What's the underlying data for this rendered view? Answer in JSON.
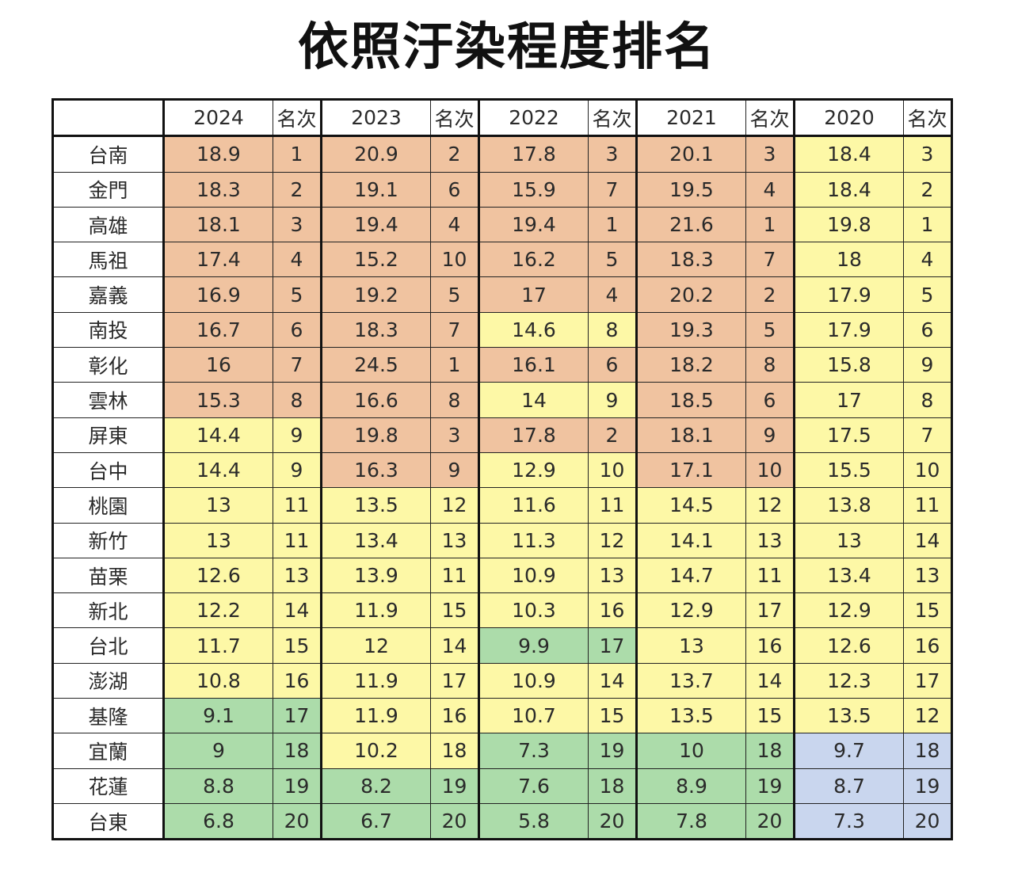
{
  "title": "依照汙染程度排名",
  "colors": {
    "orange": "#f0c3a0",
    "yellow": "#fdf8a6",
    "green": "#acdcaa",
    "blue": "#c9d6ee"
  },
  "header": {
    "blank": "",
    "y2024": "2024",
    "y2023": "2023",
    "y2022": "2022",
    "y2021": "2021",
    "y2020": "2020",
    "rank": "名次"
  },
  "rows": [
    {
      "name": "台南",
      "v": [
        "18.9",
        "1",
        "20.9",
        "2",
        "17.8",
        "3",
        "20.1",
        "3",
        "18.4",
        "3"
      ],
      "c": [
        "orange",
        "orange",
        "orange",
        "orange",
        "orange",
        "orange",
        "orange",
        "orange",
        "yellow",
        "yellow"
      ]
    },
    {
      "name": "金門",
      "v": [
        "18.3",
        "2",
        "19.1",
        "6",
        "15.9",
        "7",
        "19.5",
        "4",
        "18.4",
        "2"
      ],
      "c": [
        "orange",
        "orange",
        "orange",
        "orange",
        "orange",
        "orange",
        "orange",
        "orange",
        "yellow",
        "yellow"
      ]
    },
    {
      "name": "高雄",
      "v": [
        "18.1",
        "3",
        "19.4",
        "4",
        "19.4",
        "1",
        "21.6",
        "1",
        "19.8",
        "1"
      ],
      "c": [
        "orange",
        "orange",
        "orange",
        "orange",
        "orange",
        "orange",
        "orange",
        "orange",
        "yellow",
        "yellow"
      ]
    },
    {
      "name": "馬祖",
      "v": [
        "17.4",
        "4",
        "15.2",
        "10",
        "16.2",
        "5",
        "18.3",
        "7",
        "18",
        "4"
      ],
      "c": [
        "orange",
        "orange",
        "orange",
        "orange",
        "orange",
        "orange",
        "orange",
        "orange",
        "yellow",
        "yellow"
      ]
    },
    {
      "name": "嘉義",
      "v": [
        "16.9",
        "5",
        "19.2",
        "5",
        "17",
        "4",
        "20.2",
        "2",
        "17.9",
        "5"
      ],
      "c": [
        "orange",
        "orange",
        "orange",
        "orange",
        "orange",
        "orange",
        "orange",
        "orange",
        "yellow",
        "yellow"
      ]
    },
    {
      "name": "南投",
      "v": [
        "16.7",
        "6",
        "18.3",
        "7",
        "14.6",
        "8",
        "19.3",
        "5",
        "17.9",
        "6"
      ],
      "c": [
        "orange",
        "orange",
        "orange",
        "orange",
        "yellow",
        "yellow",
        "orange",
        "orange",
        "yellow",
        "yellow"
      ]
    },
    {
      "name": "彰化",
      "v": [
        "16",
        "7",
        "24.5",
        "1",
        "16.1",
        "6",
        "18.2",
        "8",
        "15.8",
        "9"
      ],
      "c": [
        "orange",
        "orange",
        "orange",
        "orange",
        "orange",
        "orange",
        "orange",
        "orange",
        "yellow",
        "yellow"
      ]
    },
    {
      "name": "雲林",
      "v": [
        "15.3",
        "8",
        "16.6",
        "8",
        "14",
        "9",
        "18.5",
        "6",
        "17",
        "8"
      ],
      "c": [
        "orange",
        "orange",
        "orange",
        "orange",
        "yellow",
        "yellow",
        "orange",
        "orange",
        "yellow",
        "yellow"
      ]
    },
    {
      "name": "屏東",
      "v": [
        "14.4",
        "9",
        "19.8",
        "3",
        "17.8",
        "2",
        "18.1",
        "9",
        "17.5",
        "7"
      ],
      "c": [
        "yellow",
        "yellow",
        "orange",
        "orange",
        "orange",
        "orange",
        "orange",
        "orange",
        "yellow",
        "yellow"
      ]
    },
    {
      "name": "台中",
      "v": [
        "14.4",
        "9",
        "16.3",
        "9",
        "12.9",
        "10",
        "17.1",
        "10",
        "15.5",
        "10"
      ],
      "c": [
        "yellow",
        "yellow",
        "orange",
        "orange",
        "yellow",
        "yellow",
        "orange",
        "orange",
        "yellow",
        "yellow"
      ]
    },
    {
      "name": "桃園",
      "v": [
        "13",
        "11",
        "13.5",
        "12",
        "11.6",
        "11",
        "14.5",
        "12",
        "13.8",
        "11"
      ],
      "c": [
        "yellow",
        "yellow",
        "yellow",
        "yellow",
        "yellow",
        "yellow",
        "yellow",
        "yellow",
        "yellow",
        "yellow"
      ]
    },
    {
      "name": "新竹",
      "v": [
        "13",
        "11",
        "13.4",
        "13",
        "11.3",
        "12",
        "14.1",
        "13",
        "13",
        "14"
      ],
      "c": [
        "yellow",
        "yellow",
        "yellow",
        "yellow",
        "yellow",
        "yellow",
        "yellow",
        "yellow",
        "yellow",
        "yellow"
      ]
    },
    {
      "name": "苗栗",
      "v": [
        "12.6",
        "13",
        "13.9",
        "11",
        "10.9",
        "13",
        "14.7",
        "11",
        "13.4",
        "13"
      ],
      "c": [
        "yellow",
        "yellow",
        "yellow",
        "yellow",
        "yellow",
        "yellow",
        "yellow",
        "yellow",
        "yellow",
        "yellow"
      ]
    },
    {
      "name": "新北",
      "v": [
        "12.2",
        "14",
        "11.9",
        "15",
        "10.3",
        "16",
        "12.9",
        "17",
        "12.9",
        "15"
      ],
      "c": [
        "yellow",
        "yellow",
        "yellow",
        "yellow",
        "yellow",
        "yellow",
        "yellow",
        "yellow",
        "yellow",
        "yellow"
      ]
    },
    {
      "name": "台北",
      "v": [
        "11.7",
        "15",
        "12",
        "14",
        "9.9",
        "17",
        "13",
        "16",
        "12.6",
        "16"
      ],
      "c": [
        "yellow",
        "yellow",
        "yellow",
        "yellow",
        "green",
        "green",
        "yellow",
        "yellow",
        "yellow",
        "yellow"
      ]
    },
    {
      "name": "澎湖",
      "v": [
        "10.8",
        "16",
        "11.9",
        "17",
        "10.9",
        "14",
        "13.7",
        "14",
        "12.3",
        "17"
      ],
      "c": [
        "yellow",
        "yellow",
        "yellow",
        "yellow",
        "yellow",
        "yellow",
        "yellow",
        "yellow",
        "yellow",
        "yellow"
      ]
    },
    {
      "name": "基隆",
      "v": [
        "9.1",
        "17",
        "11.9",
        "16",
        "10.7",
        "15",
        "13.5",
        "15",
        "13.5",
        "12"
      ],
      "c": [
        "green",
        "green",
        "yellow",
        "yellow",
        "yellow",
        "yellow",
        "yellow",
        "yellow",
        "yellow",
        "yellow"
      ]
    },
    {
      "name": "宜蘭",
      "v": [
        "9",
        "18",
        "10.2",
        "18",
        "7.3",
        "19",
        "10",
        "18",
        "9.7",
        "18"
      ],
      "c": [
        "green",
        "green",
        "yellow",
        "yellow",
        "green",
        "green",
        "green",
        "green",
        "blue",
        "blue"
      ]
    },
    {
      "name": "花蓮",
      "v": [
        "8.8",
        "19",
        "8.2",
        "19",
        "7.6",
        "18",
        "8.9",
        "19",
        "8.7",
        "19"
      ],
      "c": [
        "green",
        "green",
        "green",
        "green",
        "green",
        "green",
        "green",
        "green",
        "blue",
        "blue"
      ]
    },
    {
      "name": "台東",
      "v": [
        "6.8",
        "20",
        "6.7",
        "20",
        "5.8",
        "20",
        "7.8",
        "20",
        "7.3",
        "20"
      ],
      "c": [
        "green",
        "green",
        "green",
        "green",
        "green",
        "green",
        "green",
        "green",
        "blue",
        "blue"
      ]
    }
  ],
  "chart_data": {
    "type": "table",
    "title": "依照汙染程度排名",
    "columns": [
      "",
      "2024",
      "名次",
      "2023",
      "名次",
      "2022",
      "名次",
      "2021",
      "名次",
      "2020",
      "名次"
    ],
    "categories": [
      "台南",
      "金門",
      "高雄",
      "馬祖",
      "嘉義",
      "南投",
      "彰化",
      "雲林",
      "屏東",
      "台中",
      "桃園",
      "新竹",
      "苗栗",
      "新北",
      "台北",
      "澎湖",
      "基隆",
      "宜蘭",
      "花蓮",
      "台東"
    ],
    "series": [
      {
        "name": "2024",
        "values": [
          18.9,
          18.3,
          18.1,
          17.4,
          16.9,
          16.7,
          16,
          15.3,
          14.4,
          14.4,
          13,
          13,
          12.6,
          12.2,
          11.7,
          10.8,
          9.1,
          9,
          8.8,
          6.8
        ]
      },
      {
        "name": "2024 名次",
        "values": [
          1,
          2,
          3,
          4,
          5,
          6,
          7,
          8,
          9,
          9,
          11,
          11,
          13,
          14,
          15,
          16,
          17,
          18,
          19,
          20
        ]
      },
      {
        "name": "2023",
        "values": [
          20.9,
          19.1,
          19.4,
          15.2,
          19.2,
          18.3,
          24.5,
          16.6,
          19.8,
          16.3,
          13.5,
          13.4,
          13.9,
          11.9,
          12,
          11.9,
          11.9,
          10.2,
          8.2,
          6.7
        ]
      },
      {
        "name": "2023 名次",
        "values": [
          2,
          6,
          4,
          10,
          5,
          7,
          1,
          8,
          3,
          9,
          12,
          13,
          11,
          15,
          14,
          17,
          16,
          18,
          19,
          20
        ]
      },
      {
        "name": "2022",
        "values": [
          17.8,
          15.9,
          19.4,
          16.2,
          17,
          14.6,
          16.1,
          14,
          17.8,
          12.9,
          11.6,
          11.3,
          10.9,
          10.3,
          9.9,
          10.9,
          10.7,
          7.3,
          7.6,
          5.8
        ]
      },
      {
        "name": "2022 名次",
        "values": [
          3,
          7,
          1,
          5,
          4,
          8,
          6,
          9,
          2,
          10,
          11,
          12,
          13,
          16,
          17,
          14,
          15,
          19,
          18,
          20
        ]
      },
      {
        "name": "2021",
        "values": [
          20.1,
          19.5,
          21.6,
          18.3,
          20.2,
          19.3,
          18.2,
          18.5,
          18.1,
          17.1,
          14.5,
          14.1,
          14.7,
          12.9,
          13,
          13.7,
          13.5,
          10,
          8.9,
          7.8
        ]
      },
      {
        "name": "2021 名次",
        "values": [
          3,
          4,
          1,
          7,
          2,
          5,
          8,
          6,
          9,
          10,
          12,
          13,
          11,
          17,
          16,
          14,
          15,
          18,
          19,
          20
        ]
      },
      {
        "name": "2020",
        "values": [
          18.4,
          18.4,
          19.8,
          18,
          17.9,
          17.9,
          15.8,
          17,
          17.5,
          15.5,
          13.8,
          13,
          13.4,
          12.9,
          12.6,
          12.3,
          13.5,
          9.7,
          8.7,
          7.3
        ]
      },
      {
        "name": "2020 名次",
        "values": [
          3,
          2,
          1,
          4,
          5,
          6,
          9,
          8,
          7,
          10,
          11,
          14,
          13,
          15,
          16,
          17,
          12,
          18,
          19,
          20
        ]
      }
    ]
  }
}
